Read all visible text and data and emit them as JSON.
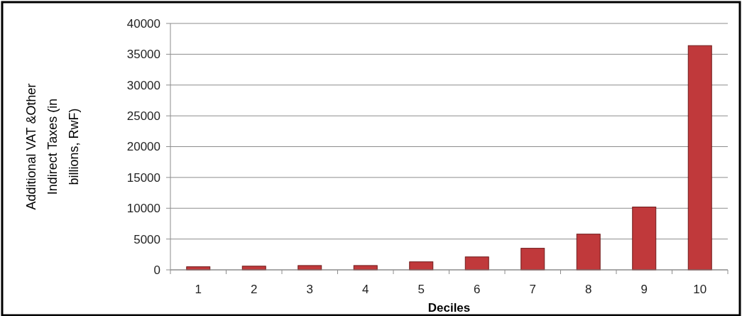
{
  "chart_data": {
    "type": "bar",
    "xlabel": "Deciles",
    "ylabel": "Additional VAT &Other Indirect Taxes (in billions, RwF)",
    "categories": [
      "1",
      "2",
      "3",
      "4",
      "5",
      "6",
      "7",
      "8",
      "9",
      "10"
    ],
    "values": [
      500,
      600,
      700,
      700,
      1300,
      2100,
      3500,
      5800,
      10200,
      36400
    ],
    "color": "#c0393b",
    "ylim": [
      0,
      40000
    ],
    "yticks": [
      0,
      5000,
      10000,
      15000,
      20000,
      25000,
      30000,
      35000,
      40000
    ],
    "grid": "y"
  }
}
